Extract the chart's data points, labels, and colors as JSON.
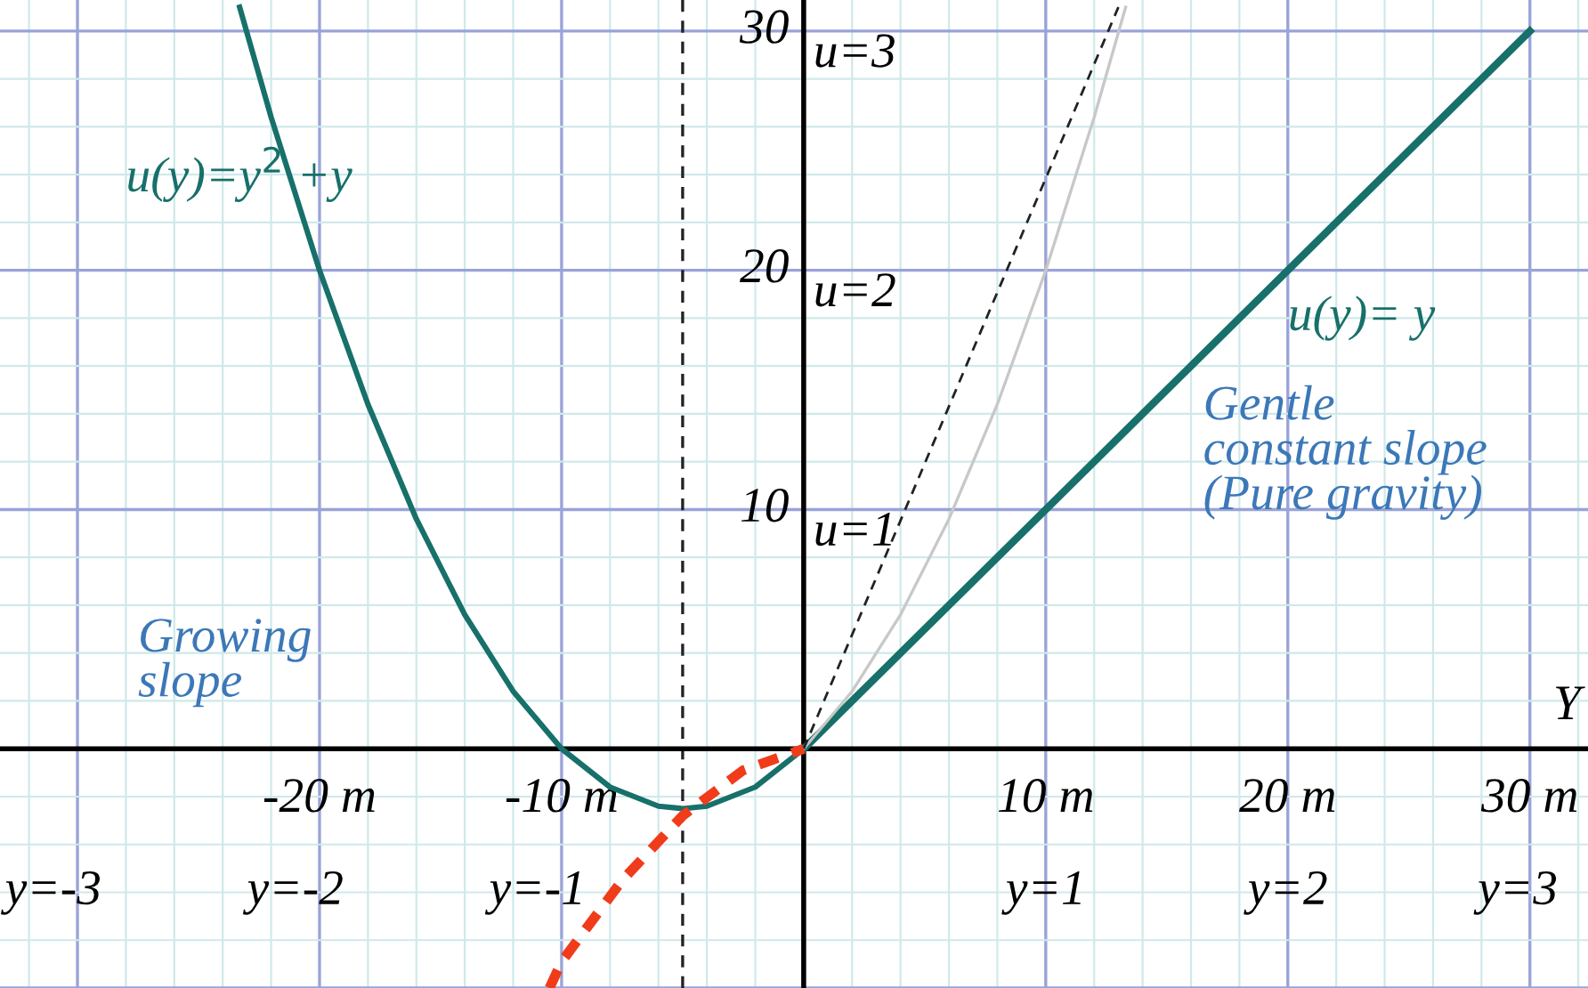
{
  "chart_data": {
    "type": "line",
    "xlabel": "Y",
    "xlim": [
      -33.2,
      32.4
    ],
    "ylim": [
      -10,
      31.3
    ],
    "xticks": [
      {
        "value": -32,
        "label": null
      },
      {
        "value": -30,
        "label": null
      },
      {
        "value": -28,
        "label": null
      },
      {
        "value": -26,
        "label": null
      },
      {
        "value": -24,
        "label": null
      },
      {
        "value": -22,
        "label": null
      },
      {
        "value": -20,
        "label": "-20 m"
      },
      {
        "value": -18,
        "label": null
      },
      {
        "value": -16,
        "label": null
      },
      {
        "value": -14,
        "label": null
      },
      {
        "value": -12,
        "label": null
      },
      {
        "value": -10,
        "label": "-10 m"
      },
      {
        "value": -8,
        "label": null
      },
      {
        "value": -6,
        "label": null
      },
      {
        "value": -4,
        "label": null
      },
      {
        "value": -2,
        "label": null
      },
      {
        "value": 2,
        "label": null
      },
      {
        "value": 4,
        "label": null
      },
      {
        "value": 6,
        "label": null
      },
      {
        "value": 8,
        "label": null
      },
      {
        "value": 10,
        "label": "10 m"
      },
      {
        "value": 12,
        "label": null
      },
      {
        "value": 14,
        "label": null
      },
      {
        "value": 16,
        "label": null
      },
      {
        "value": 18,
        "label": null
      },
      {
        "value": 20,
        "label": "20 m"
      },
      {
        "value": 22,
        "label": null
      },
      {
        "value": 24,
        "label": null
      },
      {
        "value": 26,
        "label": null
      },
      {
        "value": 28,
        "label": null
      },
      {
        "value": 30,
        "label": "30 m"
      },
      {
        "value": 32,
        "label": null
      }
    ],
    "yticks": [
      {
        "value": -10,
        "label": null
      },
      {
        "value": -8,
        "label": null
      },
      {
        "value": -6,
        "label": null
      },
      {
        "value": -4,
        "label": null
      },
      {
        "value": -2,
        "label": null
      },
      {
        "value": 2,
        "label": null
      },
      {
        "value": 4,
        "label": null
      },
      {
        "value": 6,
        "label": null
      },
      {
        "value": 8,
        "label": null
      },
      10,
      {
        "value": 12,
        "label": null
      },
      {
        "value": 14,
        "label": null
      },
      {
        "value": 16,
        "label": null
      },
      {
        "value": 18,
        "label": null
      },
      20,
      {
        "value": 22,
        "label": null
      },
      {
        "value": 24,
        "label": null
      },
      {
        "value": 26,
        "label": null
      },
      {
        "value": 28,
        "label": null
      },
      30
    ],
    "grid": true,
    "marker": "none",
    "series": [
      {
        "name": "u(y)=y$^{2}$ +y",
        "color": "#17706a",
        "x": [
          -23.3,
          -22,
          -20,
          -18,
          -16,
          -14,
          -12,
          -10,
          -8,
          -6,
          -5,
          -4,
          -2,
          0
        ],
        "values": [
          31.0,
          26.4,
          20,
          14.4,
          9.6,
          5.6,
          2.4,
          0,
          -1.6,
          -2.4,
          -2.5,
          -2.4,
          -1.6,
          0
        ]
      },
      {
        "name": "u(y)= y",
        "color": "#17706a",
        "x": [
          0,
          30
        ],
        "values": [
          0,
          30
        ]
      },
      {
        "color": "#c8c8c8",
        "x": [
          0,
          2,
          4,
          6,
          8,
          10,
          12,
          13.3
        ],
        "values": [
          0,
          2.4,
          5.6,
          9.6,
          14.4,
          20,
          26.4,
          31.0
        ]
      },
      {
        "color": "#222222",
        "line_style": "dashed",
        "x": [
          0,
          13
        ],
        "values": [
          0,
          31
        ]
      },
      {
        "color": "#f03c1a",
        "line_style": "dashed",
        "x": [
          -10.5,
          -10,
          -7.5,
          -5,
          -2.5,
          0
        ],
        "values": [
          -10,
          -8.9,
          -5.5,
          -2.8,
          -0.9,
          0
        ]
      }
    ],
    "ref_lines": [
      {
        "axis": "x",
        "value": -5,
        "color": "#222222",
        "line_style": "dashed"
      }
    ],
    "annotations": [
      "y=-3",
      "y=-2",
      "y=-1",
      "y=1",
      "y=2",
      "y=3",
      "u=1",
      "u=2",
      "u=3",
      "Growing\nslope",
      "Gentle\nconstant slope\n(Pure gravity)"
    ]
  }
}
